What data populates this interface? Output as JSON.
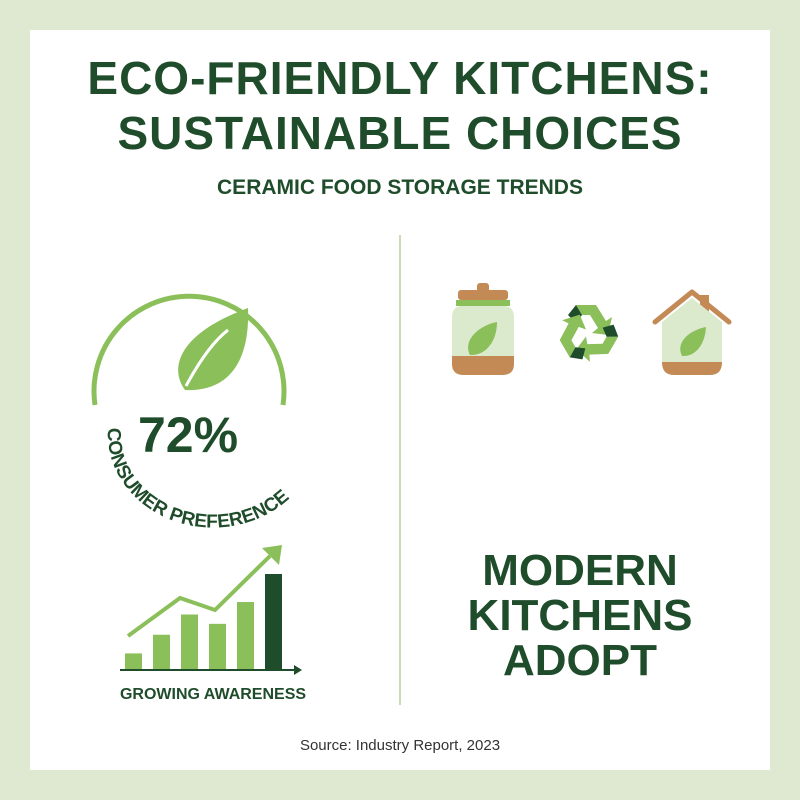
{
  "title": {
    "line1": "ECO-FRIENDLY KITCHENS:",
    "line2": "SUSTAINABLE CHOICES"
  },
  "subtitle": "CERAMIC FOOD STORAGE TRENDS",
  "stat": {
    "value": "72%",
    "label": "CONSUMER PREFERENCE",
    "icon": "leaf-icon"
  },
  "growth": {
    "label": "GROWING AWARENESS",
    "bar_levels": [
      1,
      2.2,
      3.5,
      2.9,
      4.3,
      6.1
    ]
  },
  "icons": [
    "jar-icon",
    "recycle-icon",
    "house-icon"
  ],
  "modern": {
    "line1": "MODERN",
    "line2": "KITCHENS",
    "line3": "ADOPT"
  },
  "source": "Source: Industry Report, 2023",
  "colors": {
    "dark_green": "#1f4d2b",
    "light_green": "#8bbf5a",
    "pale_green": "#dbe9cc",
    "brown": "#c48a55",
    "background": "#dfe9d2"
  }
}
